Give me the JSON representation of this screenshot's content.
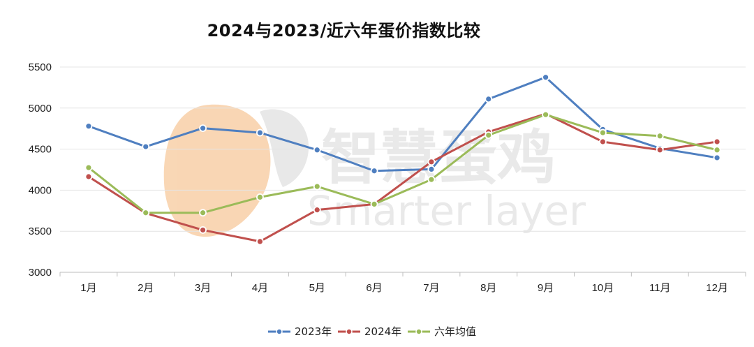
{
  "chart_data": {
    "type": "line",
    "title": "2024与2023/近六年蛋价指数比较",
    "categories": [
      "1月",
      "2月",
      "3月",
      "4月",
      "5月",
      "6月",
      "7月",
      "8月",
      "9月",
      "10月",
      "11月",
      "12月"
    ],
    "series": [
      {
        "name": "2023年",
        "color": "#4f7fc0",
        "values": [
          4780,
          4530,
          4755,
          4700,
          4490,
          4235,
          4255,
          5110,
          5375,
          4740,
          4510,
          4395
        ]
      },
      {
        "name": "2024年",
        "color": "#c0504d",
        "values": [
          4165,
          3720,
          3515,
          3375,
          3760,
          3830,
          4345,
          4710,
          4930,
          4590,
          4490,
          4590
        ]
      },
      {
        "name": "六年均值",
        "color": "#9bbb59",
        "values": [
          4275,
          3725,
          3725,
          3915,
          4045,
          3830,
          4130,
          4670,
          4920,
          4700,
          4660,
          4490
        ]
      }
    ],
    "ylim": [
      3000,
      5500
    ],
    "yticks": [
      "3000",
      "3500",
      "4000",
      "4500",
      "5000",
      "5500"
    ],
    "grid": true,
    "legend_position": "bottom",
    "watermark": {
      "text_cn": "智慧蛋鸡",
      "text_en": "Smarter layer",
      "logo_color": "#f6c08c"
    }
  }
}
